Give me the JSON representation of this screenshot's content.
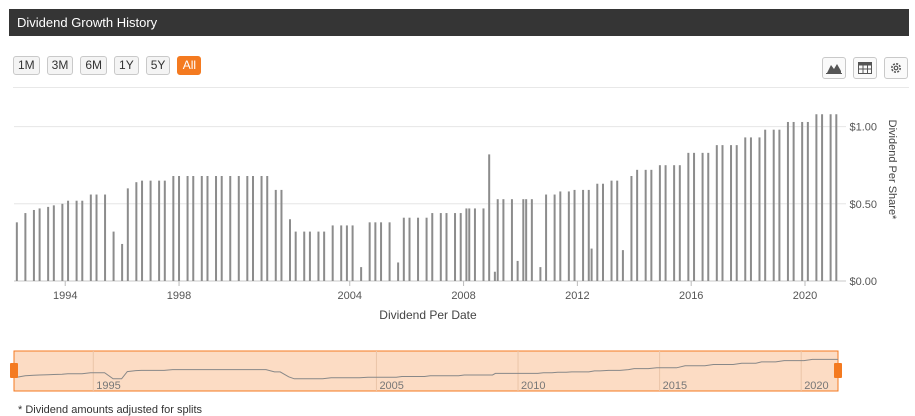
{
  "header": {
    "title": "Dividend Growth History"
  },
  "range_buttons": [
    "1M",
    "3M",
    "6M",
    "1Y",
    "5Y",
    "All"
  ],
  "active_range": "All",
  "toolbar": {
    "icons": [
      "area-chart-icon",
      "table-icon",
      "gear-icon"
    ]
  },
  "footnote": "* Dividend amounts adjusted for splits",
  "colors": {
    "accent": "#f47a20",
    "bar": "#8c8c8c",
    "title_bg": "#353535",
    "navigator_fill": "#fcdcc4"
  },
  "chart_data": {
    "type": "bar",
    "xlabel": "Dividend Per Date",
    "ylabel": "Dividend Per Share*",
    "x_range": [
      1992.2,
      2021.3
    ],
    "ylim": [
      0,
      1.25
    ],
    "y_ticks": [
      "$0.00",
      "$0.50",
      "$1.00"
    ],
    "y_tick_values": [
      0,
      0.5,
      1.0
    ],
    "x_ticks": [
      "1994",
      "1998",
      "2004",
      "2008",
      "2012",
      "2016",
      "2020"
    ],
    "x_tick_values": [
      1994,
      1998,
      2004,
      2008,
      2012,
      2016,
      2020
    ],
    "grid": true,
    "legend": "none",
    "x": [
      1992.3,
      1992.6,
      1992.9,
      1993.1,
      1993.4,
      1993.6,
      1993.9,
      1994.1,
      1994.4,
      1994.6,
      1994.9,
      1995.1,
      1995.4,
      1995.7,
      1996.0,
      1996.2,
      1996.5,
      1996.7,
      1997.0,
      1997.3,
      1997.5,
      1997.8,
      1998.0,
      1998.3,
      1998.5,
      1998.8,
      1999.0,
      1999.3,
      1999.5,
      1999.8,
      2000.1,
      2000.4,
      2000.6,
      2000.9,
      2001.1,
      2001.4,
      2001.6,
      2001.9,
      2002.1,
      2002.4,
      2002.6,
      2002.9,
      2003.1,
      2003.4,
      2003.7,
      2003.9,
      2004.1,
      2004.4,
      2004.7,
      2004.9,
      2005.1,
      2005.4,
      2005.7,
      2005.9,
      2006.1,
      2006.4,
      2006.7,
      2006.9,
      2007.2,
      2007.4,
      2007.7,
      2007.9,
      2008.1,
      2008.2,
      2008.4,
      2008.7,
      2008.9,
      2009.1,
      2009.2,
      2009.4,
      2009.7,
      2009.9,
      2010.1,
      2010.2,
      2010.4,
      2010.7,
      2010.9,
      2011.2,
      2011.4,
      2011.7,
      2011.9,
      2012.2,
      2012.4,
      2012.5,
      2012.7,
      2012.9,
      2013.2,
      2013.4,
      2013.6,
      2013.9,
      2014.1,
      2014.4,
      2014.6,
      2014.9,
      2015.1,
      2015.4,
      2015.6,
      2015.9,
      2016.1,
      2016.4,
      2016.6,
      2016.9,
      2017.1,
      2017.4,
      2017.6,
      2017.9,
      2018.1,
      2018.4,
      2018.6,
      2018.9,
      2019.1,
      2019.4,
      2019.6,
      2019.9,
      2020.1,
      2020.4,
      2020.6,
      2020.9,
      2021.1
    ],
    "values": [
      0.38,
      0.44,
      0.46,
      0.47,
      0.48,
      0.49,
      0.5,
      0.52,
      0.52,
      0.52,
      0.56,
      0.56,
      0.56,
      0.32,
      0.24,
      0.6,
      0.64,
      0.65,
      0.65,
      0.65,
      0.65,
      0.68,
      0.68,
      0.68,
      0.68,
      0.68,
      0.68,
      0.68,
      0.68,
      0.68,
      0.68,
      0.68,
      0.68,
      0.68,
      0.68,
      0.59,
      0.59,
      0.4,
      0.32,
      0.32,
      0.32,
      0.32,
      0.32,
      0.36,
      0.36,
      0.36,
      0.36,
      0.09,
      0.38,
      0.38,
      0.38,
      0.38,
      0.12,
      0.41,
      0.41,
      0.41,
      0.41,
      0.44,
      0.44,
      0.44,
      0.44,
      0.44,
      0.47,
      0.47,
      0.47,
      0.47,
      0.82,
      0.06,
      0.53,
      0.53,
      0.53,
      0.13,
      0.53,
      0.53,
      0.53,
      0.09,
      0.56,
      0.56,
      0.58,
      0.58,
      0.59,
      0.59,
      0.59,
      0.21,
      0.63,
      0.63,
      0.65,
      0.65,
      0.2,
      0.68,
      0.72,
      0.72,
      0.72,
      0.75,
      0.75,
      0.75,
      0.75,
      0.83,
      0.83,
      0.83,
      0.83,
      0.88,
      0.88,
      0.88,
      0.88,
      0.93,
      0.93,
      0.93,
      0.98,
      0.98,
      0.98,
      1.03,
      1.03,
      1.03,
      1.03,
      1.08,
      1.08,
      1.08,
      1.08
    ]
  },
  "navigator": {
    "x_ticks": [
      "1995",
      "2005",
      "2010",
      "2015",
      "2020"
    ],
    "x_tick_values": [
      1995,
      2005,
      2010,
      2015,
      2020
    ]
  }
}
